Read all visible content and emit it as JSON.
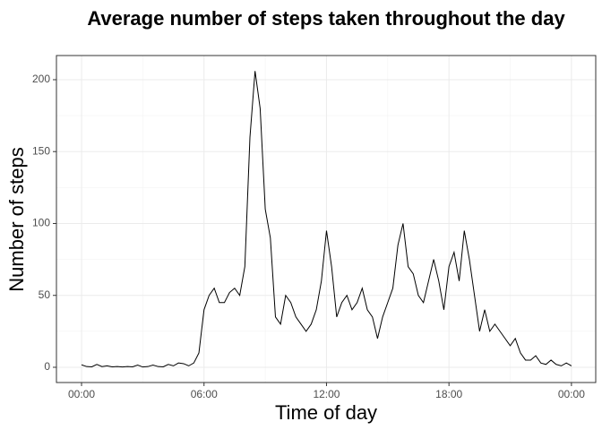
{
  "chart_data": {
    "type": "line",
    "title": "Average number of steps taken throughout the day",
    "x_label": "Time of day",
    "y_label": "Number of steps",
    "x": [
      0,
      0.25,
      0.5,
      0.75,
      1,
      1.25,
      1.5,
      1.75,
      2,
      2.25,
      2.5,
      2.75,
      3,
      3.25,
      3.5,
      3.75,
      4,
      4.25,
      4.5,
      4.75,
      5,
      5.25,
      5.5,
      5.75,
      6,
      6.25,
      6.5,
      6.75,
      7,
      7.25,
      7.5,
      7.75,
      8,
      8.25,
      8.5,
      8.75,
      9,
      9.25,
      9.5,
      9.75,
      10,
      10.25,
      10.5,
      10.75,
      11,
      11.25,
      11.5,
      11.75,
      12,
      12.25,
      12.5,
      12.75,
      13,
      13.25,
      13.5,
      13.75,
      14,
      14.25,
      14.5,
      14.75,
      15,
      15.25,
      15.5,
      15.75,
      16,
      16.25,
      16.5,
      16.75,
      17,
      17.25,
      17.5,
      17.75,
      18,
      18.25,
      18.5,
      18.75,
      19,
      19.25,
      19.5,
      19.75,
      20,
      20.25,
      20.5,
      20.75,
      21,
      21.25,
      21.5,
      21.75,
      22,
      22.25,
      22.5,
      22.75,
      23,
      23.25,
      23.5,
      23.75,
      24
    ],
    "series": [
      {
        "color": "#000000",
        "values": [
          1.7,
          0.5,
          0.3,
          2,
          0.5,
          1,
          0.3,
          0.5,
          0.2,
          0.5,
          0.3,
          1.5,
          0.2,
          0.5,
          1.5,
          0.5,
          0.3,
          2,
          1,
          3,
          2.5,
          1,
          3,
          10,
          40,
          50,
          55,
          45,
          45,
          52,
          55,
          50,
          70,
          160,
          206,
          180,
          110,
          90,
          35,
          30,
          50,
          45,
          35,
          30,
          25,
          30,
          40,
          60,
          95,
          70,
          35,
          45,
          50,
          40,
          45,
          55,
          40,
          35,
          20,
          35,
          45,
          55,
          85,
          100,
          70,
          65,
          50,
          45,
          60,
          75,
          60,
          40,
          70,
          80,
          60,
          95,
          75,
          50,
          25,
          40,
          25,
          30,
          25,
          20,
          15,
          20,
          10,
          5,
          5,
          8,
          3,
          2,
          5,
          2,
          1,
          3,
          1
        ]
      }
    ],
    "xlim": [
      -1.23,
      25.19
    ],
    "ylim": [
      -10.6,
      216.8
    ],
    "xticks": [
      {
        "value": 0,
        "label": "00:00"
      },
      {
        "value": 6,
        "label": "06:00"
      },
      {
        "value": 12,
        "label": "12:00"
      },
      {
        "value": 18,
        "label": "18:00"
      },
      {
        "value": 24,
        "label": "00:00"
      }
    ],
    "yticks": [
      0,
      50,
      100,
      150,
      200
    ],
    "x_minor_ticks": [
      3,
      9,
      15,
      21
    ],
    "y_minor_ticks": [
      25,
      75,
      125,
      175
    ],
    "grid": true
  }
}
